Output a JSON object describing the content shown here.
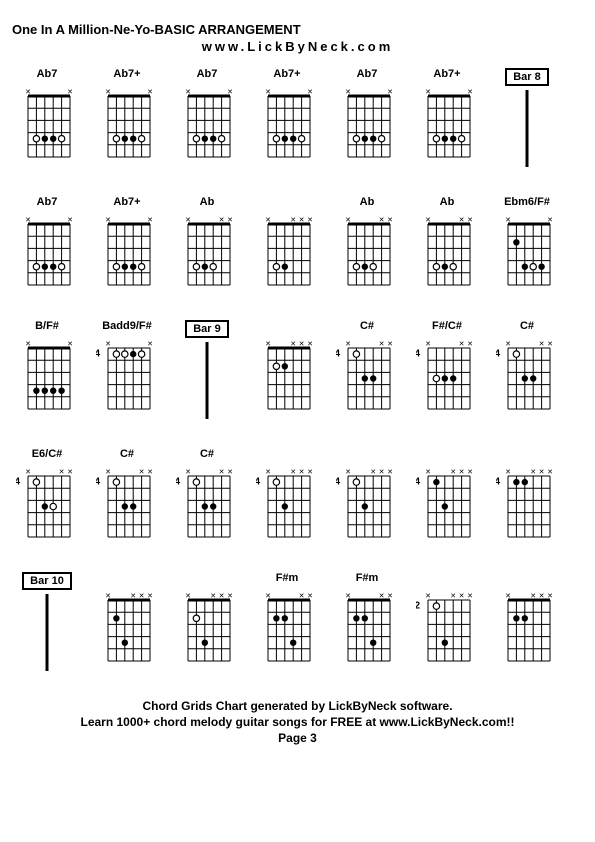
{
  "header": {
    "title": "One In A Million-Ne-Yo-BASIC ARRANGEMENT",
    "subtitle": "www.LickByNeck.com"
  },
  "footer": {
    "line1": "Chord Grids Chart generated by LickByNeck software.",
    "line2": "Learn 1000+ chord melody guitar songs for FREE at www.LickByNeck.com!!",
    "page": "Page 3"
  },
  "diagram_style": {
    "width": 50,
    "height": 75,
    "strings": 6,
    "frets": 5,
    "line_color": "#000000",
    "bg": "#ffffff",
    "dot_open_r": 3.2,
    "dot_fill_r": 3.2,
    "nut_h": 3,
    "font_family": "Arial",
    "title_fontsize": 13,
    "label_fontsize": 11,
    "footer_fontsize": 12,
    "x_mark_size": 7
  },
  "rows": [
    [
      {
        "type": "chord",
        "name": "Ab7",
        "fret": "",
        "muted": [
          0,
          5
        ],
        "open": [],
        "dots": [
          [
            1,
            4
          ],
          [
            2,
            4
          ],
          [
            3,
            4
          ],
          [
            4,
            4
          ]
        ],
        "dots_open": [
          [
            1,
            4
          ],
          [
            4,
            4
          ]
        ]
      },
      {
        "type": "chord",
        "name": "Ab7+",
        "fret": "",
        "muted": [
          0,
          5
        ],
        "open": [],
        "dots": [
          [
            1,
            4
          ],
          [
            2,
            4
          ],
          [
            3,
            4
          ],
          [
            4,
            4
          ]
        ],
        "dots_open": [
          [
            1,
            4
          ],
          [
            4,
            4
          ]
        ]
      },
      {
        "type": "chord",
        "name": "Ab7",
        "fret": "",
        "muted": [
          0,
          5
        ],
        "open": [],
        "dots": [
          [
            1,
            4
          ],
          [
            2,
            4
          ],
          [
            3,
            4
          ],
          [
            4,
            4
          ]
        ],
        "dots_open": [
          [
            1,
            4
          ],
          [
            4,
            4
          ]
        ]
      },
      {
        "type": "chord",
        "name": "Ab7+",
        "fret": "",
        "muted": [
          0,
          5
        ],
        "open": [],
        "dots": [
          [
            1,
            4
          ],
          [
            2,
            4
          ],
          [
            3,
            4
          ],
          [
            4,
            4
          ]
        ],
        "dots_open": [
          [
            1,
            4
          ],
          [
            4,
            4
          ]
        ]
      },
      {
        "type": "chord",
        "name": "Ab7",
        "fret": "",
        "muted": [
          0,
          5
        ],
        "open": [],
        "dots": [
          [
            1,
            4
          ],
          [
            2,
            4
          ],
          [
            3,
            4
          ],
          [
            4,
            4
          ]
        ],
        "dots_open": [
          [
            1,
            4
          ],
          [
            4,
            4
          ]
        ]
      },
      {
        "type": "chord",
        "name": "Ab7+",
        "fret": "",
        "muted": [
          0,
          5
        ],
        "open": [],
        "dots": [
          [
            1,
            4
          ],
          [
            2,
            4
          ],
          [
            3,
            4
          ],
          [
            4,
            4
          ]
        ],
        "dots_open": [
          [
            1,
            4
          ],
          [
            4,
            4
          ]
        ]
      },
      {
        "type": "bar",
        "name": "Bar 8"
      }
    ],
    [
      {
        "type": "chord",
        "name": "Ab7",
        "fret": "",
        "muted": [
          0,
          5
        ],
        "open": [],
        "dots": [
          [
            1,
            4
          ],
          [
            2,
            4
          ],
          [
            3,
            4
          ],
          [
            4,
            4
          ]
        ],
        "dots_open": [
          [
            1,
            4
          ],
          [
            4,
            4
          ]
        ]
      },
      {
        "type": "chord",
        "name": "Ab7+",
        "fret": "",
        "muted": [
          0,
          5
        ],
        "open": [],
        "dots": [
          [
            1,
            4
          ],
          [
            2,
            4
          ],
          [
            3,
            4
          ],
          [
            4,
            4
          ]
        ],
        "dots_open": [
          [
            1,
            4
          ],
          [
            4,
            4
          ]
        ]
      },
      {
        "type": "chord",
        "name": "Ab",
        "fret": "",
        "muted": [
          0,
          4,
          5
        ],
        "open": [],
        "dots": [
          [
            1,
            4
          ],
          [
            2,
            4
          ],
          [
            3,
            4
          ]
        ],
        "dots_open": [
          [
            1,
            4
          ],
          [
            3,
            4
          ]
        ]
      },
      {
        "type": "chord",
        "name": "",
        "fret": "",
        "muted": [
          0,
          3,
          4,
          5
        ],
        "open": [],
        "dots": [
          [
            1,
            4
          ],
          [
            2,
            4
          ]
        ],
        "dots_open": [
          [
            1,
            4
          ]
        ]
      },
      {
        "type": "chord",
        "name": "Ab",
        "fret": "",
        "muted": [
          0,
          4,
          5
        ],
        "open": [],
        "dots": [
          [
            1,
            4
          ],
          [
            2,
            4
          ],
          [
            3,
            4
          ]
        ],
        "dots_open": [
          [
            1,
            4
          ],
          [
            3,
            4
          ]
        ]
      },
      {
        "type": "chord",
        "name": "Ab",
        "fret": "",
        "muted": [
          0,
          4,
          5
        ],
        "open": [],
        "dots": [
          [
            1,
            4
          ],
          [
            2,
            4
          ],
          [
            3,
            4
          ]
        ],
        "dots_open": [
          [
            1,
            4
          ],
          [
            3,
            4
          ]
        ]
      },
      {
        "type": "chord",
        "name": "Ebm6/F#",
        "fret": "",
        "muted": [
          0,
          5
        ],
        "open": [],
        "dots": [
          [
            1,
            2
          ],
          [
            2,
            4
          ],
          [
            3,
            4
          ],
          [
            4,
            4
          ]
        ],
        "dots_open": [
          [
            3,
            4
          ]
        ]
      }
    ],
    [
      {
        "type": "chord",
        "name": "B/F#",
        "fret": "",
        "muted": [
          0,
          5
        ],
        "open": [],
        "dots": [
          [
            1,
            4
          ],
          [
            2,
            4
          ],
          [
            3,
            4
          ],
          [
            4,
            4
          ]
        ],
        "dots_open": []
      },
      {
        "type": "chord",
        "name": "Badd9/F#",
        "fret": "4",
        "muted": [
          0,
          5
        ],
        "open": [],
        "dots": [
          [
            1,
            1
          ],
          [
            2,
            1
          ],
          [
            3,
            1
          ],
          [
            4,
            1
          ]
        ],
        "dots_open": [
          [
            1,
            1
          ],
          [
            2,
            1
          ],
          [
            4,
            1
          ]
        ]
      },
      {
        "type": "bar",
        "name": "Bar 9"
      },
      {
        "type": "chord",
        "name": "",
        "fret": "",
        "muted": [
          0,
          3,
          4,
          5
        ],
        "open": [],
        "dots": [
          [
            1,
            2
          ],
          [
            2,
            2
          ]
        ],
        "dots_open": [
          [
            1,
            2
          ]
        ]
      },
      {
        "type": "chord",
        "name": "C#",
        "fret": "4",
        "muted": [
          0,
          4,
          5
        ],
        "open": [],
        "dots": [
          [
            1,
            1
          ],
          [
            2,
            3
          ],
          [
            3,
            3
          ]
        ],
        "dots_open": [
          [
            1,
            1
          ]
        ]
      },
      {
        "type": "chord",
        "name": "F#/C#",
        "fret": "4",
        "muted": [
          0,
          4,
          5
        ],
        "open": [],
        "dots": [
          [
            1,
            3
          ],
          [
            2,
            3
          ],
          [
            3,
            3
          ]
        ],
        "dots_open": [
          [
            1,
            3
          ]
        ]
      },
      {
        "type": "chord",
        "name": "C#",
        "fret": "4",
        "muted": [
          0,
          4,
          5
        ],
        "open": [],
        "dots": [
          [
            1,
            1
          ],
          [
            2,
            3
          ],
          [
            3,
            3
          ]
        ],
        "dots_open": [
          [
            1,
            1
          ]
        ]
      }
    ],
    [
      {
        "type": "chord",
        "name": "E6/C#",
        "fret": "4",
        "muted": [
          0,
          4,
          5
        ],
        "open": [],
        "dots": [
          [
            1,
            1
          ],
          [
            2,
            3
          ],
          [
            3,
            3
          ]
        ],
        "dots_open": [
          [
            1,
            1
          ],
          [
            3,
            3
          ]
        ]
      },
      {
        "type": "chord",
        "name": "C#",
        "fret": "4",
        "muted": [
          0,
          4,
          5
        ],
        "open": [],
        "dots": [
          [
            1,
            1
          ],
          [
            2,
            3
          ],
          [
            3,
            3
          ]
        ],
        "dots_open": [
          [
            1,
            1
          ]
        ]
      },
      {
        "type": "chord",
        "name": "C#",
        "fret": "4",
        "muted": [
          0,
          4,
          5
        ],
        "open": [],
        "dots": [
          [
            1,
            1
          ],
          [
            2,
            3
          ],
          [
            3,
            3
          ]
        ],
        "dots_open": [
          [
            1,
            1
          ]
        ]
      },
      {
        "type": "chord",
        "name": "",
        "fret": "4",
        "muted": [
          0,
          3,
          4,
          5
        ],
        "open": [],
        "dots": [
          [
            1,
            1
          ],
          [
            2,
            3
          ]
        ],
        "dots_open": [
          [
            1,
            1
          ]
        ]
      },
      {
        "type": "chord",
        "name": "",
        "fret": "4",
        "muted": [
          0,
          3,
          4,
          5
        ],
        "open": [],
        "dots": [
          [
            1,
            1
          ],
          [
            2,
            3
          ]
        ],
        "dots_open": [
          [
            1,
            1
          ]
        ]
      },
      {
        "type": "chord",
        "name": "",
        "fret": "4",
        "muted": [
          0,
          3,
          4,
          5
        ],
        "open": [],
        "dots": [
          [
            1,
            1
          ],
          [
            2,
            3
          ]
        ],
        "dots_open": []
      },
      {
        "type": "chord",
        "name": "",
        "fret": "4",
        "muted": [
          0,
          3,
          4,
          5
        ],
        "open": [],
        "dots": [
          [
            1,
            1
          ],
          [
            2,
            1
          ]
        ],
        "dots_open": []
      }
    ],
    [
      {
        "type": "bar",
        "name": "Bar 10"
      },
      {
        "type": "chord",
        "name": "",
        "fret": "",
        "muted": [
          0,
          3,
          4,
          5
        ],
        "open": [],
        "dots": [
          [
            1,
            2
          ],
          [
            2,
            4
          ]
        ],
        "dots_open": []
      },
      {
        "type": "chord",
        "name": "",
        "fret": "",
        "muted": [
          0,
          3,
          4,
          5
        ],
        "open": [],
        "dots": [
          [
            1,
            2
          ],
          [
            2,
            4
          ]
        ],
        "dots_open": [
          [
            1,
            2
          ]
        ]
      },
      {
        "type": "chord",
        "name": "F#m",
        "fret": "",
        "muted": [
          0,
          4,
          5
        ],
        "open": [],
        "dots": [
          [
            1,
            2
          ],
          [
            2,
            2
          ],
          [
            3,
            4
          ]
        ],
        "dots_open": []
      },
      {
        "type": "chord",
        "name": "F#m",
        "fret": "",
        "muted": [
          0,
          4,
          5
        ],
        "open": [],
        "dots": [
          [
            1,
            2
          ],
          [
            2,
            2
          ],
          [
            3,
            4
          ]
        ],
        "dots_open": []
      },
      {
        "type": "chord",
        "name": "",
        "fret": "2",
        "muted": [
          0,
          3,
          4,
          5
        ],
        "open": [],
        "dots": [
          [
            1,
            1
          ],
          [
            2,
            4
          ]
        ],
        "dots_open": [
          [
            1,
            1
          ]
        ]
      },
      {
        "type": "chord",
        "name": "",
        "fret": "",
        "muted": [
          0,
          3,
          4,
          5
        ],
        "open": [],
        "dots": [
          [
            1,
            2
          ],
          [
            2,
            2
          ]
        ],
        "dots_open": []
      }
    ]
  ]
}
